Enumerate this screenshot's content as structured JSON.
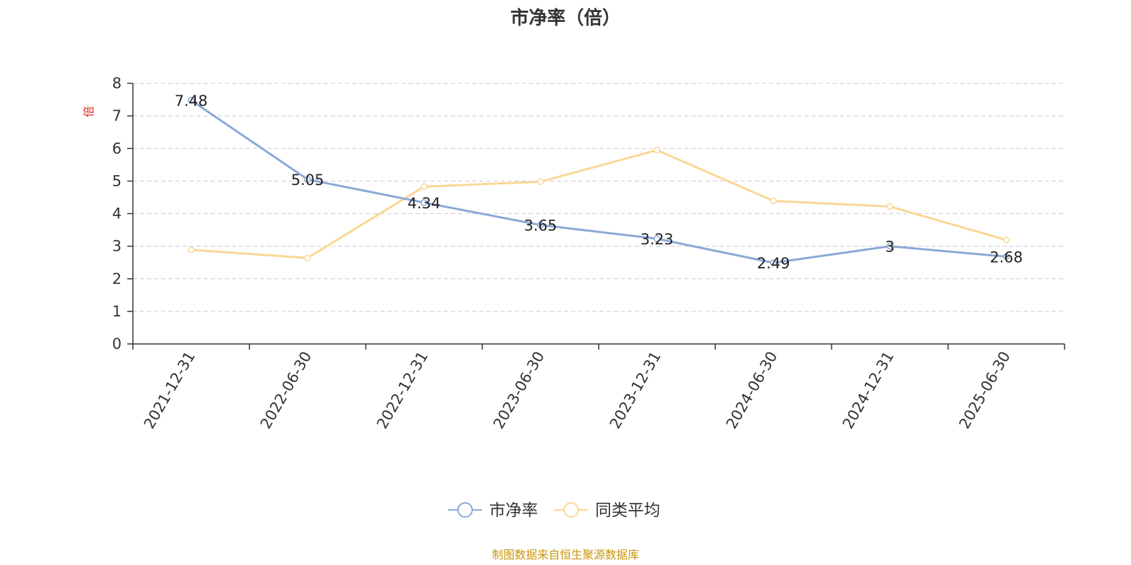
{
  "chart_data": {
    "type": "line",
    "title": "市净率（倍）",
    "ylabel": "倍",
    "ylim": [
      0,
      8
    ],
    "yticks": [
      "0",
      "1",
      "2",
      "3",
      "4",
      "5",
      "6",
      "7",
      "8"
    ],
    "grid": true,
    "legend_position": "bottom",
    "categories": [
      "2021-12-31",
      "2022-06-30",
      "2022-12-31",
      "2023-06-30",
      "2023-12-31",
      "2024-06-30",
      "2024-12-31",
      "2025-06-30"
    ],
    "series": [
      {
        "name": "市净率",
        "color": "#8ba8d6",
        "values": [
          7.48,
          5.05,
          4.34,
          3.65,
          3.23,
          2.49,
          3,
          2.68
        ],
        "labels": [
          "7.48",
          "5.05",
          "4.34",
          "3.65",
          "3.23",
          "2.49",
          "3",
          "2.68"
        ]
      },
      {
        "name": "同类平均",
        "color": "#fad794",
        "values": [
          2.89,
          2.64,
          4.83,
          4.98,
          5.95,
          4.39,
          4.22,
          3.19
        ]
      }
    ]
  },
  "footer": {
    "source": "制图数据来自恒生聚源数据库",
    "source_color": "#c8960c"
  },
  "unit_color": "#e0251f"
}
